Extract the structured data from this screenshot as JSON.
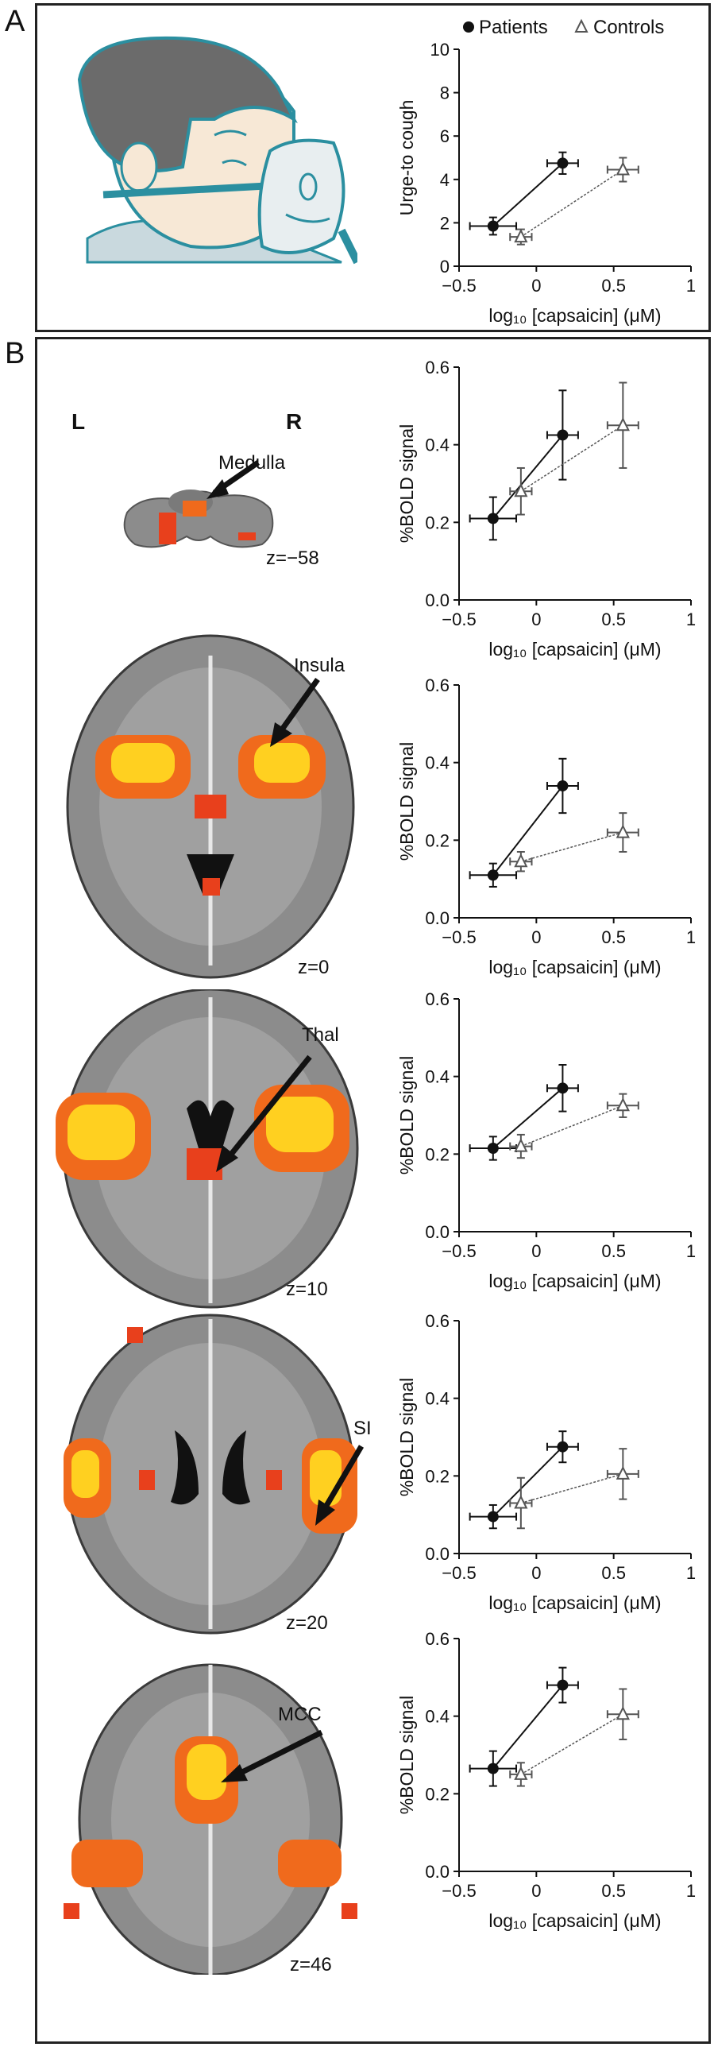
{
  "panels": {
    "A": {
      "letter": "A"
    },
    "B": {
      "letter": "B"
    }
  },
  "brain_labels": {
    "left": "L",
    "right": "R",
    "medulla": "Medulla",
    "medulla_z": "z=−58",
    "insula": "Insula",
    "insula_z": "z=0",
    "thal": "Thal",
    "thal_z": "z=10",
    "si": "SI",
    "si_z": "z=20",
    "mcc": "MCC",
    "mcc_z": "z=46"
  },
  "colors": {
    "patients": "#111111",
    "controls": "#555555",
    "face_outline": "#2b8fa0",
    "hair": "#6b6b6b",
    "skin": "#f7e8d6",
    "brain_gray": "#8c8c8c",
    "activation_red": "#e8401c",
    "activation_yellow": "#ffd020"
  },
  "chart_data": [
    {
      "type": "line",
      "legend": [
        "Patients",
        "Controls"
      ],
      "legend_position": "top",
      "xlabel": "log₁₀ [capsaicin] (μM)",
      "ylabel": "Urge-to cough",
      "xlim": [
        -0.5,
        1
      ],
      "ylim": [
        0,
        10
      ],
      "xticks": [
        "−0.5",
        "0",
        "0.5",
        "1"
      ],
      "yticks": [
        "0",
        "2",
        "4",
        "6",
        "8",
        "10"
      ],
      "ytick_values": [
        0,
        2,
        4,
        6,
        8,
        10
      ],
      "series": [
        {
          "name": "Patients",
          "marker": "filled-circle",
          "x": [
            -0.28,
            0.17
          ],
          "y": [
            1.85,
            4.75
          ],
          "xerr": [
            0.15,
            0.1
          ],
          "yerr": [
            0.4,
            0.5
          ]
        },
        {
          "name": "Controls",
          "marker": "open-triangle",
          "x": [
            -0.1,
            0.56
          ],
          "y": [
            1.35,
            4.45
          ],
          "xerr": [
            0.07,
            0.1
          ],
          "yerr": [
            0.35,
            0.55
          ]
        }
      ]
    },
    {
      "type": "line",
      "xlabel": "log₁₀ [capsaicin] (μM)",
      "ylabel": "%BOLD signal",
      "xlim": [
        -0.5,
        1
      ],
      "ylim": [
        0,
        0.6
      ],
      "xticks": [
        "−0.5",
        "0",
        "0.5",
        "1"
      ],
      "yticks": [
        "0.0",
        "0.2",
        "0.4",
        "0.6"
      ],
      "ytick_values": [
        0,
        0.2,
        0.4,
        0.6
      ],
      "series": [
        {
          "name": "Patients",
          "marker": "filled-circle",
          "x": [
            -0.28,
            0.17
          ],
          "y": [
            0.21,
            0.425
          ],
          "xerr": [
            0.15,
            0.1
          ],
          "yerr": [
            0.055,
            0.115
          ]
        },
        {
          "name": "Controls",
          "marker": "open-triangle",
          "x": [
            -0.1,
            0.56
          ],
          "y": [
            0.28,
            0.45
          ],
          "xerr": [
            0.07,
            0.1
          ],
          "yerr": [
            0.06,
            0.11
          ]
        }
      ]
    },
    {
      "type": "line",
      "xlabel": "log₁₀ [capsaicin] (μM)",
      "ylabel": "%BOLD signal",
      "xlim": [
        -0.5,
        1
      ],
      "ylim": [
        0,
        0.6
      ],
      "xticks": [
        "−0.5",
        "0",
        "0.5",
        "1"
      ],
      "yticks": [
        "0.0",
        "0.2",
        "0.4",
        "0.6"
      ],
      "ytick_values": [
        0,
        0.2,
        0.4,
        0.6
      ],
      "series": [
        {
          "name": "Patients",
          "marker": "filled-circle",
          "x": [
            -0.28,
            0.17
          ],
          "y": [
            0.11,
            0.34
          ],
          "xerr": [
            0.15,
            0.1
          ],
          "yerr": [
            0.03,
            0.07
          ]
        },
        {
          "name": "Controls",
          "marker": "open-triangle",
          "x": [
            -0.1,
            0.56
          ],
          "y": [
            0.145,
            0.22
          ],
          "xerr": [
            0.07,
            0.1
          ],
          "yerr": [
            0.025,
            0.05
          ]
        }
      ]
    },
    {
      "type": "line",
      "xlabel": "log₁₀ [capsaicin] (μM)",
      "ylabel": "%BOLD signal",
      "xlim": [
        -0.5,
        1
      ],
      "ylim": [
        0,
        0.6
      ],
      "xticks": [
        "−0.5",
        "0",
        "0.5",
        "1"
      ],
      "yticks": [
        "0.0",
        "0.2",
        "0.4",
        "0.6"
      ],
      "ytick_values": [
        0,
        0.2,
        0.4,
        0.6
      ],
      "series": [
        {
          "name": "Patients",
          "marker": "filled-circle",
          "x": [
            -0.28,
            0.17
          ],
          "y": [
            0.215,
            0.37
          ],
          "xerr": [
            0.15,
            0.1
          ],
          "yerr": [
            0.03,
            0.06
          ]
        },
        {
          "name": "Controls",
          "marker": "open-triangle",
          "x": [
            -0.1,
            0.56
          ],
          "y": [
            0.22,
            0.325
          ],
          "xerr": [
            0.07,
            0.1
          ],
          "yerr": [
            0.03,
            0.03
          ]
        }
      ]
    },
    {
      "type": "line",
      "xlabel": "log₁₀ [capsaicin] (μM)",
      "ylabel": "%BOLD signal",
      "xlim": [
        -0.5,
        1
      ],
      "ylim": [
        0,
        0.6
      ],
      "xticks": [
        "−0.5",
        "0",
        "0.5",
        "1"
      ],
      "yticks": [
        "0.0",
        "0.2",
        "0.4",
        "0.6"
      ],
      "ytick_values": [
        0,
        0.2,
        0.4,
        0.6
      ],
      "series": [
        {
          "name": "Patients",
          "marker": "filled-circle",
          "x": [
            -0.28,
            0.17
          ],
          "y": [
            0.095,
            0.275
          ],
          "xerr": [
            0.15,
            0.1
          ],
          "yerr": [
            0.03,
            0.04
          ]
        },
        {
          "name": "Controls",
          "marker": "open-triangle",
          "x": [
            -0.1,
            0.56
          ],
          "y": [
            0.13,
            0.205
          ],
          "xerr": [
            0.07,
            0.1
          ],
          "yerr": [
            0.065,
            0.065
          ]
        }
      ]
    },
    {
      "type": "line",
      "xlabel": "log₁₀ [capsaicin] (μM)",
      "ylabel": "%BOLD signal",
      "xlim": [
        -0.5,
        1
      ],
      "ylim": [
        0,
        0.6
      ],
      "xticks": [
        "−0.5",
        "0",
        "0.5",
        "1"
      ],
      "yticks": [
        "0.0",
        "0.2",
        "0.4",
        "0.6"
      ],
      "ytick_values": [
        0,
        0.2,
        0.4,
        0.6
      ],
      "series": [
        {
          "name": "Patients",
          "marker": "filled-circle",
          "x": [
            -0.28,
            0.17
          ],
          "y": [
            0.265,
            0.48
          ],
          "xerr": [
            0.15,
            0.1
          ],
          "yerr": [
            0.045,
            0.045
          ]
        },
        {
          "name": "Controls",
          "marker": "open-triangle",
          "x": [
            -0.1,
            0.56
          ],
          "y": [
            0.25,
            0.405
          ],
          "xerr": [
            0.07,
            0.1
          ],
          "yerr": [
            0.03,
            0.065
          ]
        }
      ]
    }
  ]
}
